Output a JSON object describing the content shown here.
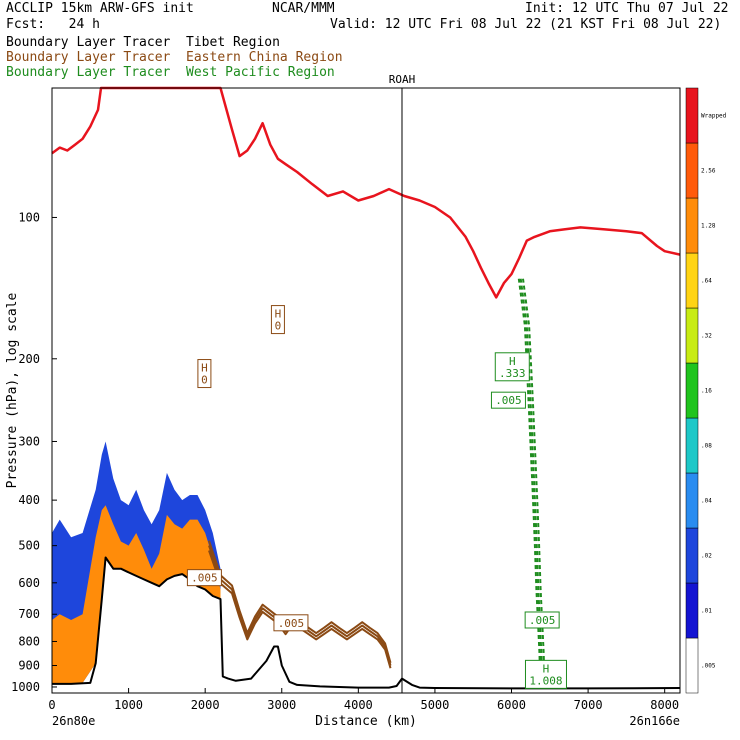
{
  "header": {
    "model": "ACCLIP 15km ARW-GFS init",
    "org": "NCAR/MMM",
    "init": "Init: 12 UTC Thu 07 Jul 22",
    "fcst": "Fcst:   24 h",
    "valid": "Valid: 12 UTC Fri 08 Jul 22 (21 KST Fri 08 Jul 22)"
  },
  "legend": [
    {
      "label": "Boundary Layer Tracer  Tibet Region",
      "color": "#000000"
    },
    {
      "label": "Boundary Layer Tracer  Eastern China Region",
      "color": "#8b4a14"
    },
    {
      "label": "Boundary Layer Tracer  West Pacific Region",
      "color": "#1e8c1e"
    }
  ],
  "colors": {
    "tropopause": "#e8141e",
    "terrain": "#000000",
    "brown": "#8b4a14",
    "green": "#1e8c1e"
  },
  "chart_data": {
    "type": "heatmap",
    "title": "",
    "xlabel": "Distance (km)",
    "ylabel": "Pressure (hPa), log scale",
    "xlim": [
      0,
      8200
    ],
    "ylim": [
      1030,
      53
    ],
    "y_scale": "log",
    "x_ticks": [
      0,
      1000,
      2000,
      3000,
      4000,
      5000,
      6000,
      7000,
      8000
    ],
    "y_ticks": [
      100,
      200,
      300,
      400,
      500,
      600,
      700,
      800,
      900,
      1000
    ],
    "endpoints": {
      "left": "26n80e",
      "right": "26n166e"
    },
    "vline": {
      "x": 4570,
      "label": "ROAH"
    },
    "colorbar": {
      "levels": [
        ".005",
        ".01",
        ".02",
        ".04",
        ".08",
        ".16",
        ".32",
        ".64",
        "1.28",
        "2.56",
        "Wrapped"
      ],
      "colors": [
        "#ffffff",
        "#1414d2",
        "#1e46dc",
        "#2a8cf0",
        "#1ec8c8",
        "#20c41e",
        "#c8ec14",
        "#ffd414",
        "#ff8c0a",
        "#ff5a0a",
        "#e8141e"
      ]
    },
    "tropopause": {
      "x": [
        0,
        100,
        200,
        300,
        400,
        500,
        600,
        640,
        2200,
        2350,
        2450,
        2550,
        2650,
        2750,
        2850,
        2950,
        3050,
        3200,
        3400,
        3600,
        3800,
        4000,
        4200,
        4400,
        4600,
        4800,
        5000,
        5200,
        5400,
        5500,
        5600,
        5700,
        5800,
        5900,
        6000,
        6100,
        6200,
        6300,
        6500,
        6700,
        6900,
        7200,
        7500,
        7700,
        7900,
        8000,
        8200
      ],
      "p": [
        73,
        71,
        72,
        70,
        68,
        64,
        59,
        53,
        53,
        65,
        74,
        72,
        68,
        63,
        70,
        75,
        77,
        80,
        85,
        90,
        88,
        92,
        90,
        87,
        90,
        92,
        95,
        100,
        110,
        118,
        128,
        138,
        148,
        138,
        132,
        122,
        112,
        110,
        107,
        106,
        105,
        106,
        107,
        108,
        115,
        118,
        120
      ]
    },
    "terrain": {
      "x": [
        0,
        250,
        500,
        570,
        650,
        700,
        800,
        900,
        1000,
        1100,
        1200,
        1300,
        1400,
        1500,
        1600,
        1700,
        1800,
        1900,
        2000,
        2100,
        2200,
        2230,
        2300,
        2400,
        2600,
        2800,
        2900,
        2950,
        3000,
        3100,
        3200,
        3500,
        4000,
        4400,
        4500,
        4570,
        4700,
        4800,
        5000,
        6000,
        7000,
        8200
      ],
      "p": [
        985,
        985,
        980,
        890,
        650,
        530,
        560,
        560,
        570,
        580,
        590,
        600,
        610,
        590,
        580,
        575,
        590,
        610,
        620,
        640,
        650,
        950,
        960,
        970,
        960,
        880,
        820,
        820,
        900,
        975,
        990,
        997,
        1003,
        1003,
        995,
        960,
        990,
        1003,
        1005,
        1007,
        1007,
        1005
      ]
    },
    "tracer_fill": {
      "x": [
        0,
        100,
        250,
        400,
        570,
        650,
        700,
        800,
        900,
        1000,
        1100,
        1200,
        1300,
        1400,
        1500,
        1600,
        1700,
        1800,
        1900,
        2000,
        2100,
        2200
      ],
      "p_top_blue": [
        470,
        440,
        480,
        470,
        380,
        320,
        300,
        360,
        400,
        410,
        380,
        420,
        450,
        420,
        350,
        380,
        400,
        390,
        390,
        420,
        470,
        560
      ],
      "p_top_orange": [
        720,
        700,
        720,
        700,
        480,
        420,
        410,
        450,
        490,
        500,
        470,
        510,
        560,
        520,
        430,
        450,
        460,
        440,
        440,
        470,
        530,
        620
      ],
      "p_bottom": [
        985,
        985,
        985,
        980,
        890,
        650,
        530,
        560,
        560,
        570,
        580,
        590,
        600,
        610,
        590,
        580,
        575,
        590,
        610,
        620,
        640,
        650
      ]
    },
    "brown_contour": {
      "x": [
        2050,
        2200,
        2350,
        2450,
        2550,
        2650,
        2750,
        2850,
        2950,
        3050,
        3150,
        3250,
        3350,
        3450,
        3550,
        3650,
        3750,
        3850,
        3950,
        4050,
        4150,
        4250,
        4350,
        4420
      ],
      "p": [
        500,
        590,
        620,
        700,
        780,
        720,
        680,
        700,
        720,
        760,
        720,
        740,
        760,
        780,
        760,
        740,
        760,
        780,
        760,
        740,
        760,
        780,
        820,
        900
      ]
    },
    "green_contour": {
      "x": [
        6120,
        6200,
        6250,
        6300,
        6330,
        6350,
        6370,
        6390,
        6400
      ],
      "p": [
        135,
        170,
        250,
        380,
        500,
        620,
        720,
        850,
        980
      ]
    },
    "labels": [
      {
        "x": 2950,
        "p": 165,
        "text": "H\n0",
        "color": "#8b4a14"
      },
      {
        "x": 1990,
        "p": 215,
        "text": "H\n0",
        "color": "#8b4a14"
      },
      {
        "x": 1990,
        "p": 585,
        "text": ".005",
        "color": "#8b4a14"
      },
      {
        "x": 3120,
        "p": 730,
        "text": ".005",
        "color": "#8b4a14"
      },
      {
        "x": 6010,
        "p": 208,
        "text": "H\n.333",
        "color": "#1e8c1e"
      },
      {
        "x": 5960,
        "p": 245,
        "text": ".005",
        "color": "#1e8c1e"
      },
      {
        "x": 6400,
        "p": 720,
        "text": ".005",
        "color": "#1e8c1e"
      },
      {
        "x": 6450,
        "p": 940,
        "text": "H\n1.008",
        "color": "#1e8c1e"
      }
    ]
  }
}
